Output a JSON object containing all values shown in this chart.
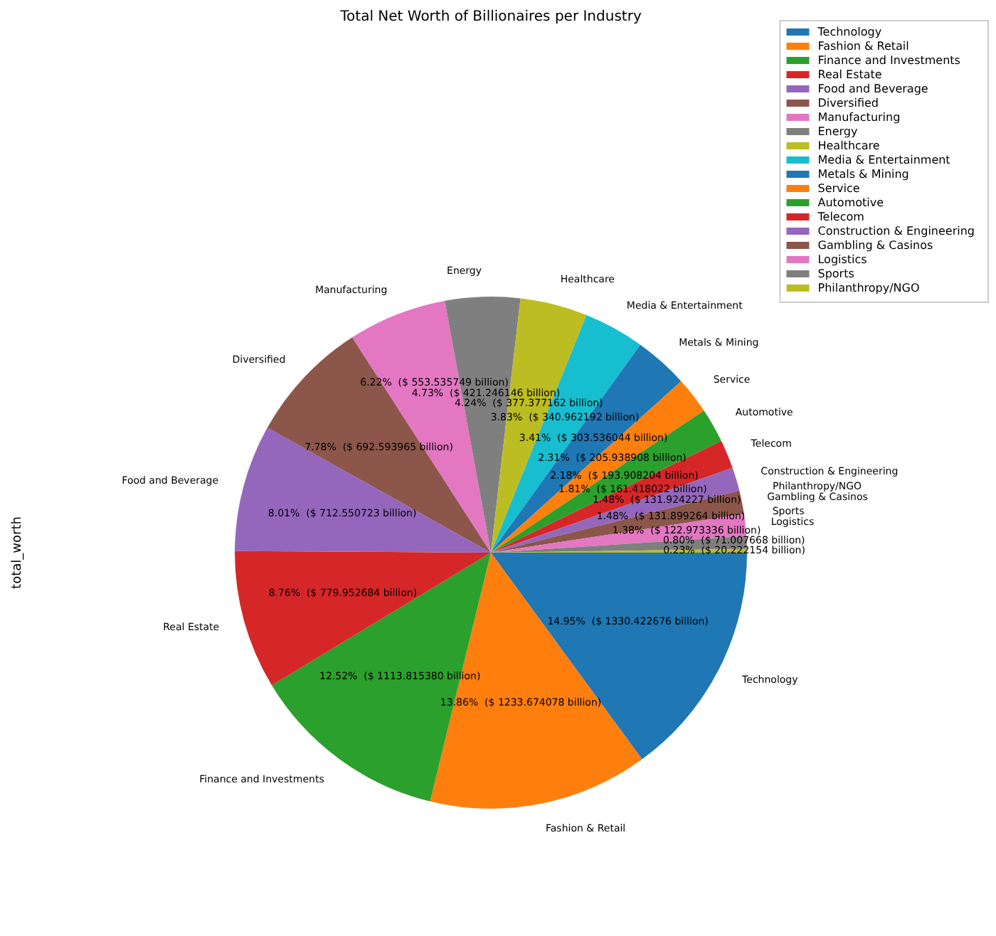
{
  "chart_data": {
    "type": "pie",
    "title": "Total Net Worth of Billionaires per Industry",
    "ylabel": "total_worth",
    "categories": [
      "Technology",
      "Fashion & Retail",
      "Finance and Investments",
      "Real Estate",
      "Food and Beverage",
      "Diversified",
      "Manufacturing",
      "Energy",
      "Healthcare",
      "Media & Entertainment",
      "Metals & Mining",
      "Service",
      "Automotive",
      "Telecom",
      "Construction & Engineering",
      "Gambling & Casinos",
      "Logistics",
      "Sports",
      "Philanthropy/NGO"
    ],
    "values": [
      14.95,
      13.86,
      12.52,
      8.76,
      8.01,
      7.78,
      6.22,
      4.73,
      4.24,
      3.83,
      3.41,
      2.31,
      2.18,
      1.81,
      1.48,
      1.48,
      1.38,
      0.8,
      0.23
    ],
    "value_labels": [
      "14.95%  ($ 1330.422676 billion)",
      "13.86%  ($ 1233.674078 billion)",
      "12.52%  ($ 1113.815380 billion)",
      "8.76%  ($ 779.952684 billion)",
      "8.01%  ($ 712.550723 billion)",
      "7.78%  ($ 692.593965 billion)",
      "6.22%  ($ 553.535749 billion)",
      "4.73%  ($ 421.246146 billion)",
      "4.24%  ($ 377.377162 billion)",
      "3.83%  ($ 340.962192 billion)",
      "3.41%  ($ 303.536044 billion)",
      "2.31%  ($ 205.938908 billion)",
      "2.18%  ($ 193.908204 billion)",
      "1.81%  ($ 161.418022 billion)",
      "1.48%  ($ 131.924227 billion)",
      "1.48%  ($ 131.899264 billion)",
      "1.38%  ($ 122.973336 billion)",
      "0.80%  ($ 71.007668 billion)",
      "0.23%  ($ 20.222154 billion)"
    ],
    "colors": [
      "#1f77b4",
      "#ff7f0e",
      "#2ca02c",
      "#d62728",
      "#9467bd",
      "#8c564b",
      "#e377c2",
      "#7f7f7f",
      "#bcbd22",
      "#17becf",
      "#1f77b4",
      "#ff7f0e",
      "#2ca02c",
      "#d62728",
      "#9467bd",
      "#8c564b",
      "#e377c2",
      "#7f7f7f",
      "#bcbd22"
    ],
    "legend": "top right"
  }
}
